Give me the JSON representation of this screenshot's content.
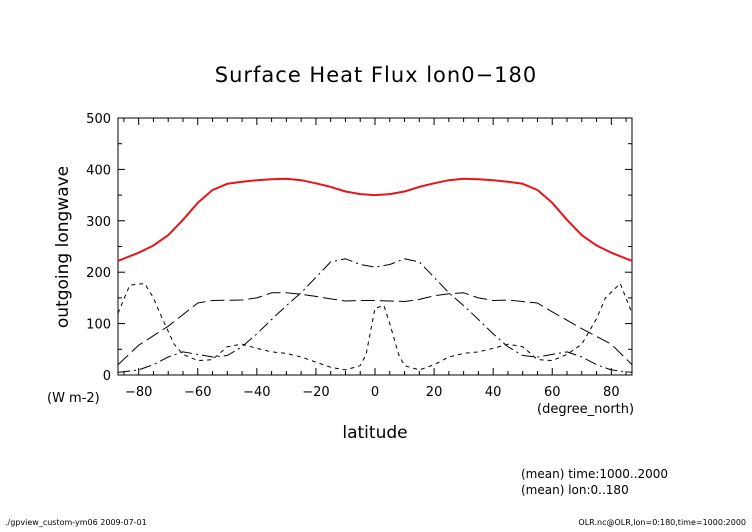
{
  "chart_data": {
    "type": "line",
    "title": "Surface Heat Flux lon0−180",
    "xlabel": "latitude",
    "ylabel": "outgoing longwave",
    "x_unit": "(degree_north)",
    "y_unit": "(W m-2)",
    "xlim": [
      -87,
      87
    ],
    "ylim": [
      0,
      500
    ],
    "x_ticks": [
      -80,
      -60,
      -40,
      -20,
      0,
      20,
      40,
      60,
      80
    ],
    "x_tick_labels": [
      "−80",
      "−60",
      "−40",
      "−20",
      "0",
      "20",
      "40",
      "60",
      "80"
    ],
    "y_ticks": [
      0,
      100,
      200,
      300,
      400,
      500
    ],
    "y_tick_labels": [
      "0",
      "100",
      "200",
      "300",
      "400",
      "500"
    ],
    "grid": false,
    "series": [
      {
        "color": "#e8141c",
        "style": "solid",
        "x": [
          -87,
          -80,
          -75,
          -70,
          -65,
          -60,
          -55,
          -50,
          -45,
          -40,
          -35,
          -30,
          -25,
          -20,
          -15,
          -10,
          -5,
          0,
          5,
          10,
          15,
          20,
          25,
          30,
          35,
          40,
          45,
          50,
          55,
          60,
          65,
          70,
          75,
          80,
          87
        ],
        "y": [
          222,
          238,
          252,
          272,
          302,
          335,
          360,
          372,
          376,
          379,
          381,
          382,
          379,
          373,
          366,
          357,
          352,
          350,
          352,
          357,
          366,
          373,
          379,
          382,
          381,
          379,
          376,
          372,
          360,
          335,
          302,
          272,
          252,
          238,
          222
        ]
      },
      {
        "color": "#000000",
        "style": "longdash",
        "x": [
          -87,
          -80,
          -70,
          -60,
          -55,
          -45,
          -40,
          -35,
          -30,
          -25,
          -20,
          -15,
          -10,
          -5,
          0,
          5,
          10,
          15,
          20,
          25,
          30,
          35,
          40,
          45,
          55,
          60,
          70,
          80,
          87
        ],
        "y": [
          20,
          58,
          95,
          140,
          145,
          146,
          150,
          160,
          160,
          157,
          153,
          148,
          144,
          145,
          145,
          144,
          143,
          147,
          154,
          158,
          160,
          150,
          145,
          146,
          140,
          123,
          90,
          60,
          20
        ]
      },
      {
        "color": "#000000",
        "style": "dashdot",
        "x": [
          -87,
          -80,
          -75,
          -70,
          -65,
          -60,
          -55,
          -50,
          -45,
          -40,
          -35,
          -30,
          -25,
          -20,
          -15,
          -10,
          -5,
          0,
          5,
          10,
          15,
          20,
          25,
          30,
          35,
          40,
          45,
          50,
          55,
          60,
          65,
          70,
          75,
          80,
          87
        ],
        "y": [
          5,
          10,
          20,
          35,
          45,
          40,
          35,
          38,
          55,
          80,
          108,
          135,
          160,
          190,
          220,
          226,
          215,
          210,
          215,
          226,
          220,
          190,
          160,
          135,
          108,
          80,
          55,
          38,
          35,
          40,
          45,
          35,
          20,
          10,
          5
        ]
      },
      {
        "color": "#000000",
        "style": "shortdash",
        "x": [
          -87,
          -83,
          -78,
          -75,
          -72,
          -68,
          -65,
          -60,
          -55,
          -50,
          -45,
          -40,
          -35,
          -30,
          -25,
          -20,
          -15,
          -10,
          -5,
          -3,
          0,
          3,
          5,
          8,
          10,
          15,
          20,
          25,
          30,
          35,
          40,
          45,
          50,
          55,
          60,
          65,
          70,
          75,
          78,
          83,
          87
        ],
        "y": [
          120,
          175,
          178,
          150,
          110,
          60,
          40,
          28,
          30,
          55,
          60,
          52,
          45,
          42,
          35,
          25,
          15,
          10,
          18,
          40,
          130,
          135,
          100,
          40,
          18,
          10,
          20,
          35,
          42,
          45,
          52,
          60,
          55,
          30,
          28,
          40,
          60,
          110,
          150,
          178,
          120
        ]
      }
    ],
    "notes": [
      "(mean) time:1000..2000",
      "(mean) lon:0..180"
    ]
  },
  "footer": {
    "left": "./gpview_custom-ym06   2009-07-01",
    "right": "OLR.nc@OLR,lon=0:180,time=1000:2000"
  }
}
